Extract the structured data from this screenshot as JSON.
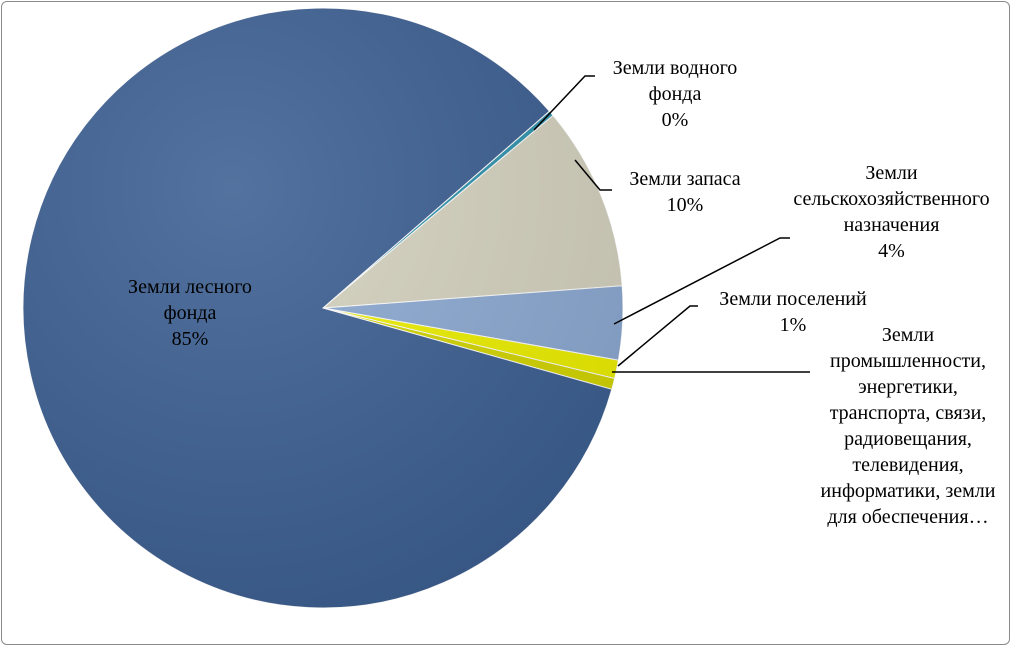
{
  "chart_data": {
    "type": "pie",
    "categories": [
      "Земли водного фонда",
      "Земли запаса",
      "Земли сельскохозяйственного назначения",
      "Земли поселений",
      "Земли промышленности, энергетики, транспорта, связи, радиовещания, телевидения, информатики, земли для обеспечения…",
      "Земли лесного фонда"
    ],
    "values": [
      0.3,
      10,
      4,
      1,
      0.6,
      85
    ],
    "value_labels": [
      "0%",
      "10%",
      "4%",
      "1%",
      null,
      "85%"
    ],
    "colors": [
      "#2f93ad",
      "#d5d2bf",
      "#8daad3",
      "#eef000",
      "#d4d600",
      "#3c5f92"
    ]
  }
}
